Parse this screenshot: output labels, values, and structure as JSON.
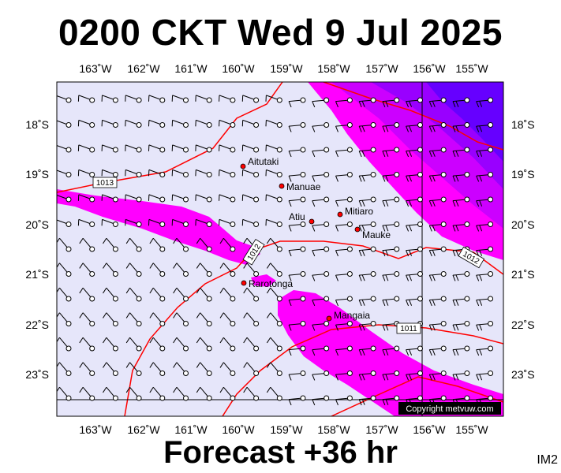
{
  "header": {
    "title": "0200 CKT Wed 9 Jul 2025"
  },
  "footer": {
    "forecast": "Forecast +36 hr",
    "code": "IM2"
  },
  "map": {
    "lon_labels": [
      "163˚W",
      "162˚W",
      "161˚W",
      "160˚W",
      "159˚W",
      "158˚W",
      "157˚W",
      "156˚W",
      "155˚W"
    ],
    "lat_labels": [
      "18˚S",
      "19˚S",
      "20˚S",
      "21˚S",
      "22˚S",
      "23˚S"
    ],
    "places": [
      {
        "name": "Aitutaki"
      },
      {
        "name": "Manuae"
      },
      {
        "name": "Atiu"
      },
      {
        "name": "Mitiaro"
      },
      {
        "name": "Mauke"
      },
      {
        "name": "Rarotonga"
      },
      {
        "name": "Mangaia"
      }
    ],
    "isobars": [
      "1013",
      "1012",
      "1012",
      "1011"
    ],
    "copyright": "Copyright metvuw.com",
    "colors": {
      "background": "#e6e6fa",
      "rain": "#ff00ff",
      "heavy_rain": "#6600ff",
      "isobar": "#ff0000"
    }
  }
}
